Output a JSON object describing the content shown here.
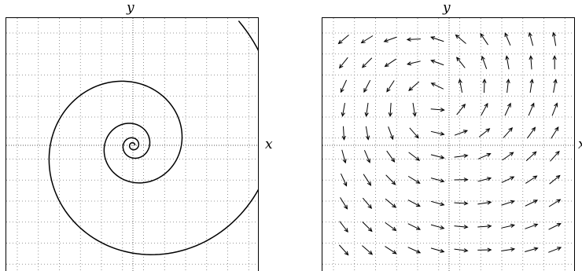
{
  "labels": {
    "left_y": "y",
    "left_x": "x",
    "right_y": "y",
    "right_x": "x"
  },
  "phase_portrait": {
    "kind": "spiral-trajectory",
    "direction": "counter-clockwise",
    "grid": true,
    "line_color": "#000000"
  },
  "vector_field": {
    "kind": "direction-field",
    "rows": 10,
    "cols": 10,
    "grid": true,
    "arrow_color": "#000000"
  }
}
